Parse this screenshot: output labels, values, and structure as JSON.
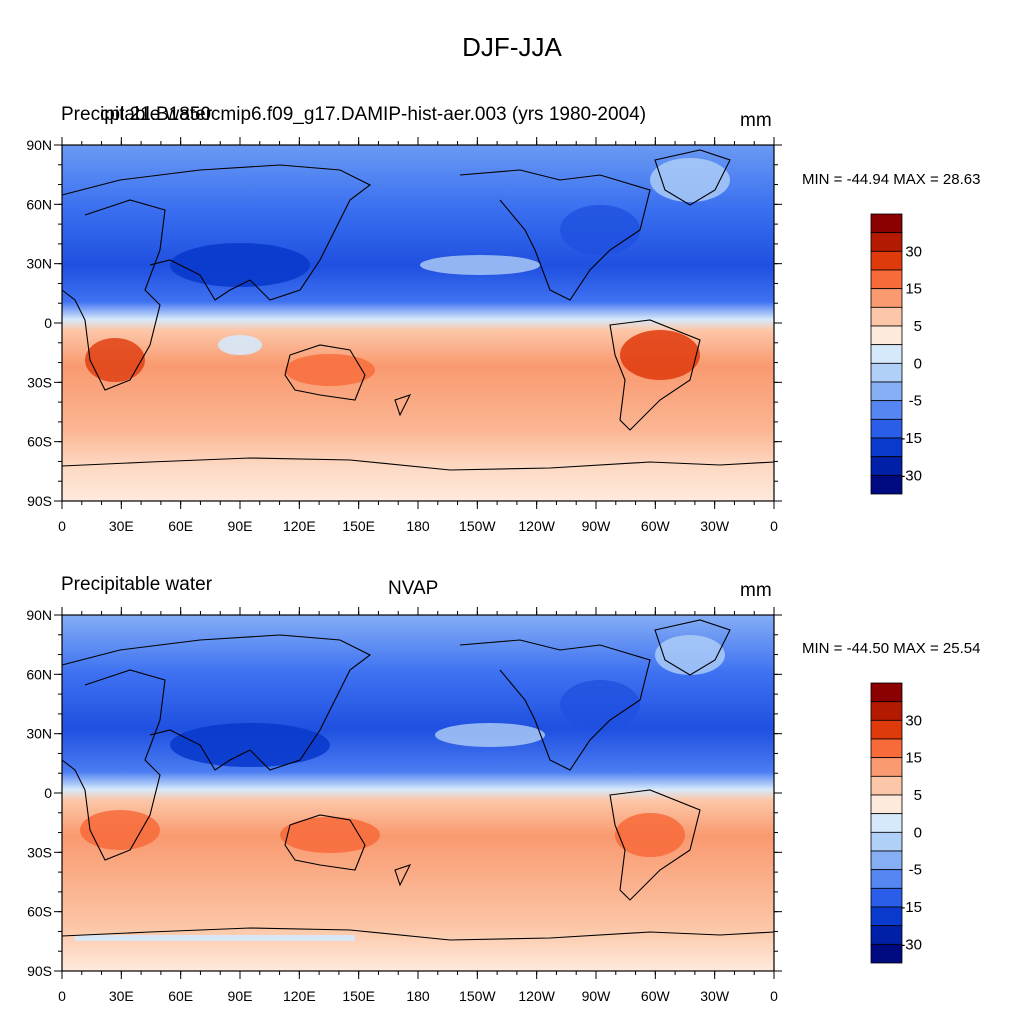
{
  "figure_title": "DJF-JJA",
  "lon_ticks": [
    "0",
    "30E",
    "60E",
    "90E",
    "120E",
    "150E",
    "180",
    "150W",
    "120W",
    "90W",
    "60W",
    "30W",
    "0"
  ],
  "lat_ticks": [
    "90N",
    "60N",
    "30N",
    "0",
    "30S",
    "60S",
    "90S"
  ],
  "colorbar": {
    "tick_labels": [
      "30",
      "15",
      "5",
      "0",
      "-5",
      "-15",
      "-30"
    ],
    "colors": [
      "#8b0000",
      "#b31a00",
      "#df3a0c",
      "#f76a3a",
      "#f99a70",
      "#fcc7a8",
      "#feeadc",
      "#d6e9fb",
      "#b0d0f8",
      "#85aef4",
      "#5686f2",
      "#2a5ee8",
      "#0a3acc",
      "#0020a8",
      "#000a80"
    ]
  },
  "panels": [
    {
      "left_title_a": "Precipitable water",
      "left_title_b": "cpl.21.B1850cmip6.f09_g17.DAMIP-hist-aer.003 (yrs 1980-2004)",
      "center_title": "",
      "units": "mm",
      "minmax": "MIN = -44.94 MAX =  28.63"
    },
    {
      "left_title_a": "Precipitable water",
      "left_title_b": "",
      "center_title": "NVAP",
      "units": "mm",
      "minmax": "MIN = -44.50 MAX =  25.54"
    }
  ],
  "chart_data": [
    {
      "type": "heatmap",
      "title": "cpl.21.B1850cmip6.f09_g17.DAMIP-hist-aer.003 (yrs 1980-2004)",
      "variable": "Precipitable water",
      "units": "mm",
      "min": -44.94,
      "max": 28.63,
      "x_range": [
        "0",
        "0"
      ],
      "y_range": [
        "90S",
        "90N"
      ],
      "contour_levels": [
        -40,
        -35,
        -30,
        -25,
        -20,
        -15,
        -10,
        -5,
        -2,
        0,
        2,
        5,
        10,
        15,
        20,
        25,
        30,
        35,
        40
      ],
      "pattern": "negative (blue) in Northern Hemisphere, positive (red) in Southern Hemisphere"
    },
    {
      "type": "heatmap",
      "title": "NVAP",
      "variable": "Precipitable water",
      "units": "mm",
      "min": -44.5,
      "max": 25.54,
      "x_range": [
        "0",
        "0"
      ],
      "y_range": [
        "90S",
        "90N"
      ],
      "contour_levels": [
        -40,
        -35,
        -30,
        -25,
        -20,
        -15,
        -10,
        -5,
        -2,
        0,
        2,
        5,
        10,
        15,
        20,
        25,
        30,
        35,
        40
      ],
      "pattern": "negative (blue) in Northern Hemisphere, positive (red) in Southern Hemisphere"
    }
  ]
}
